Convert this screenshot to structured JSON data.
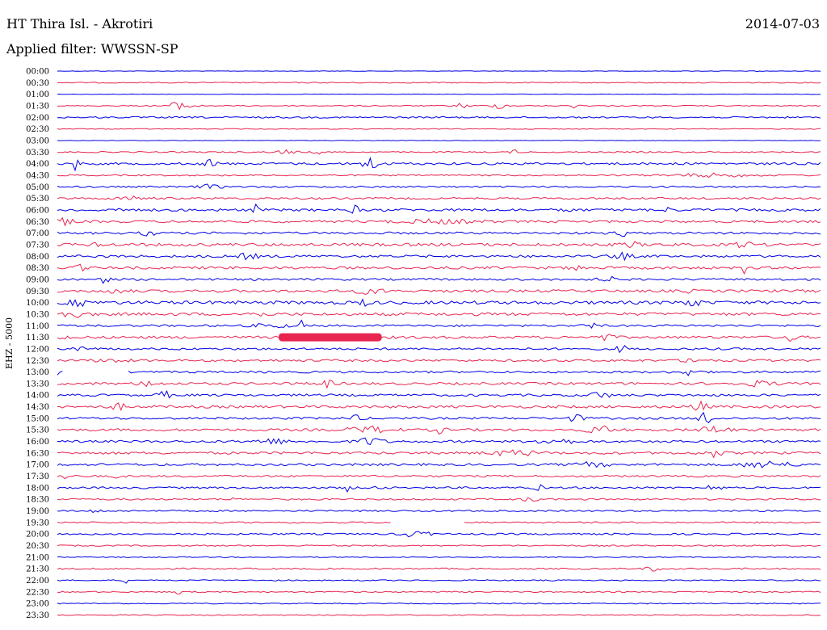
{
  "header": {
    "title": "HT Thira Isl. - Akrotiri",
    "filter": "Applied filter: WWSSN-SP",
    "date": "2014-07-03"
  },
  "colors": {
    "odd_trace": "#0000e6",
    "even_trace": "#e8254f",
    "background": "#ffffff"
  },
  "chart_data": {
    "type": "line",
    "title": "HT Thira Isl. - Akrotiri",
    "subtitle": "Applied filter: WWSSN-SP",
    "ylabel": "EHZ - 5000",
    "row_labels": [
      "00:00",
      "00:30",
      "01:00",
      "01:30",
      "02:00",
      "02:30",
      "03:00",
      "03:30",
      "04:00",
      "04:30",
      "05:00",
      "05:30",
      "06:00",
      "06:30",
      "07:00",
      "07:30",
      "08:00",
      "08:30",
      "09:00",
      "09:30",
      "10:00",
      "10:30",
      "11:00",
      "11:30",
      "12:00",
      "12:30",
      "13:00",
      "13:30",
      "14:00",
      "14:30",
      "15:00",
      "15:30",
      "16:00",
      "16:30",
      "17:00",
      "17:30",
      "18:00",
      "18:30",
      "19:00",
      "19:30",
      "20:00",
      "20:30",
      "21:00",
      "21:30",
      "22:00",
      "22:30",
      "23:00",
      "23:30"
    ],
    "x_unit": "fraction of 30-minute row",
    "series_colors": [
      "#0000e6",
      "#e8254f"
    ],
    "rows": [
      {
        "noise": 0.3,
        "events": [
          [
            0.92,
            2.0,
            0.004
          ]
        ]
      },
      {
        "noise": 0.6,
        "events": []
      },
      {
        "noise": 0.3,
        "events": []
      },
      {
        "noise": 0.6,
        "events": [
          [
            0.15,
            3.5,
            0.012
          ],
          [
            0.17,
            4.5,
            0.012
          ],
          [
            0.53,
            3.5,
            0.008
          ],
          [
            0.58,
            3.0,
            0.012
          ],
          [
            0.68,
            3.0,
            0.008
          ]
        ]
      },
      {
        "noise": 1.0,
        "events": []
      },
      {
        "noise": 0.5,
        "events": []
      },
      {
        "noise": 0.3,
        "events": []
      },
      {
        "noise": 0.8,
        "events": [
          [
            0.3,
            2.5,
            0.012
          ],
          [
            0.34,
            5.0,
            0.004
          ],
          [
            0.6,
            2.5,
            0.006
          ]
        ]
      },
      {
        "noise": 1.4,
        "events": [
          [
            0.025,
            10.0,
            0.003
          ],
          [
            0.2,
            5.0,
            0.008
          ],
          [
            0.41,
            7.0,
            0.012
          ]
        ]
      },
      {
        "noise": 0.9,
        "events": [
          [
            0.86,
            2.0,
            0.05
          ]
        ]
      },
      {
        "noise": 1.0,
        "events": [
          [
            0.2,
            2.5,
            0.015
          ]
        ]
      },
      {
        "noise": 1.2,
        "events": [
          [
            0.1,
            2.0,
            0.02
          ]
        ]
      },
      {
        "noise": 1.6,
        "events": [
          [
            0.09,
            4.0,
            0.006
          ],
          [
            0.26,
            6.0,
            0.003
          ],
          [
            0.39,
            5.0,
            0.005
          ],
          [
            0.67,
            3.5,
            0.005
          ],
          [
            0.8,
            3.0,
            0.003
          ]
        ]
      },
      {
        "noise": 1.5,
        "events": [
          [
            0.01,
            4.0,
            0.01
          ],
          [
            0.5,
            2.0,
            0.05
          ]
        ]
      },
      {
        "noise": 1.4,
        "events": [
          [
            0.12,
            2.5,
            0.01
          ],
          [
            0.74,
            3.5,
            0.008
          ]
        ]
      },
      {
        "noise": 1.8,
        "events": [
          [
            0.05,
            3.5,
            0.006
          ],
          [
            0.75,
            3.0,
            0.012
          ],
          [
            0.9,
            3.0,
            0.012
          ]
        ]
      },
      {
        "noise": 1.5,
        "events": [
          [
            0.25,
            3.5,
            0.012
          ],
          [
            0.74,
            3.5,
            0.012
          ]
        ]
      },
      {
        "noise": 1.6,
        "events": [
          [
            0.03,
            3.5,
            0.006
          ],
          [
            0.68,
            3.0,
            0.008
          ],
          [
            0.9,
            6.0,
            0.003
          ]
        ]
      },
      {
        "noise": 1.3,
        "events": [
          [
            0.06,
            3.5,
            0.008
          ],
          [
            0.72,
            3.5,
            0.01
          ]
        ]
      },
      {
        "noise": 1.6,
        "events": [
          [
            0.08,
            3.0,
            0.012
          ],
          [
            0.41,
            3.5,
            0.016
          ],
          [
            0.83,
            5.0,
            0.003
          ]
        ]
      },
      {
        "noise": 2.0,
        "events": [
          [
            0.03,
            3.0,
            0.015
          ],
          [
            0.4,
            4.0,
            0.006
          ],
          [
            0.83,
            4.0,
            0.012
          ]
        ]
      },
      {
        "noise": 1.8,
        "events": [
          [
            0.02,
            3.0,
            0.02
          ],
          [
            0.26,
            3.5,
            0.01
          ]
        ]
      },
      {
        "noise": 1.3,
        "events": [
          [
            0.28,
            2.5,
            0.02
          ],
          [
            0.32,
            6.0,
            0.003
          ],
          [
            0.7,
            3.5,
            0.008
          ]
        ]
      },
      {
        "noise": 1.6,
        "events": [
          [
            0.01,
            3.5,
            0.006
          ],
          [
            0.72,
            4.0,
            0.008
          ],
          [
            0.96,
            4.0,
            0.008
          ]
        ]
      },
      {
        "noise": 1.3,
        "events": [
          [
            0.03,
            3.0,
            0.01
          ],
          [
            0.74,
            4.0,
            0.008
          ]
        ]
      },
      {
        "noise": 1.4,
        "events": [
          [
            0.07,
            2.0,
            0.02
          ],
          [
            0.83,
            4.5,
            0.008
          ]
        ]
      },
      {
        "noise": 1.3,
        "events": [
          [
            0.0,
            2.5,
            0.002
          ],
          [
            0.83,
            4.0,
            0.012
          ]
        ]
      },
      {
        "noise": 1.5,
        "events": [
          [
            0.12,
            4.0,
            0.012
          ],
          [
            0.35,
            5.0,
            0.01
          ],
          [
            0.92,
            3.0,
            0.02
          ]
        ]
      },
      {
        "noise": 1.4,
        "events": [
          [
            0.14,
            4.5,
            0.008
          ],
          [
            0.71,
            4.0,
            0.012
          ]
        ]
      },
      {
        "noise": 1.6,
        "events": [
          [
            0.08,
            3.5,
            0.01
          ],
          [
            0.84,
            6.0,
            0.01
          ]
        ]
      },
      {
        "noise": 1.3,
        "events": [
          [
            0.39,
            3.0,
            0.012
          ],
          [
            0.68,
            4.0,
            0.01
          ],
          [
            0.85,
            10.0,
            0.008
          ]
        ]
      },
      {
        "noise": 1.5,
        "events": [
          [
            0.41,
            3.5,
            0.03
          ],
          [
            0.5,
            4.0,
            0.008
          ],
          [
            0.71,
            5.0,
            0.015
          ],
          [
            0.86,
            4.0,
            0.02
          ]
        ]
      },
      {
        "noise": 1.4,
        "events": [
          [
            0.28,
            3.0,
            0.02
          ],
          [
            0.41,
            5.0,
            0.015
          ],
          [
            0.65,
            3.0,
            0.025
          ]
        ]
      },
      {
        "noise": 1.5,
        "events": [
          [
            0.6,
            3.0,
            0.03
          ],
          [
            0.86,
            4.5,
            0.012
          ]
        ]
      },
      {
        "noise": 1.4,
        "events": [
          [
            0.7,
            2.5,
            0.02
          ],
          [
            0.93,
            4.0,
            0.03
          ]
        ]
      },
      {
        "noise": 1.2,
        "events": [
          [
            0.01,
            3.5,
            0.005
          ],
          [
            0.08,
            2.0,
            0.006
          ]
        ]
      },
      {
        "noise": 1.2,
        "events": [
          [
            0.38,
            4.0,
            0.005
          ],
          [
            0.42,
            3.0,
            0.004
          ],
          [
            0.63,
            4.0,
            0.005
          ],
          [
            0.86,
            4.5,
            0.008
          ]
        ]
      },
      {
        "noise": 1.0,
        "events": [
          [
            0.23,
            2.5,
            0.003
          ],
          [
            0.62,
            2.5,
            0.01
          ]
        ]
      },
      {
        "noise": 1.0,
        "events": [
          [
            0.05,
            2.5,
            0.006
          ]
        ]
      },
      {
        "noise": 0.9,
        "events": [
          [
            0.46,
            2.0,
            0.01
          ]
        ]
      },
      {
        "noise": 1.0,
        "events": [
          [
            0.46,
            3.0,
            0.01
          ],
          [
            0.48,
            4.0,
            0.008
          ]
        ]
      },
      {
        "noise": 0.8,
        "events": []
      },
      {
        "noise": 0.6,
        "events": []
      },
      {
        "noise": 0.9,
        "events": [
          [
            0.78,
            2.5,
            0.01
          ]
        ]
      },
      {
        "noise": 0.7,
        "events": [
          [
            0.09,
            3.0,
            0.004
          ]
        ]
      },
      {
        "noise": 0.8,
        "events": [
          [
            0.16,
            3.5,
            0.004
          ]
        ]
      },
      {
        "noise": 0.6,
        "events": []
      },
      {
        "noise": 0.6,
        "events": []
      }
    ],
    "gaps": [
      [
        26,
        0.01,
        0.09
      ],
      [
        39,
        0.44,
        0.53
      ]
    ],
    "saturations": [
      [
        23,
        0.29,
        0.425
      ]
    ]
  }
}
